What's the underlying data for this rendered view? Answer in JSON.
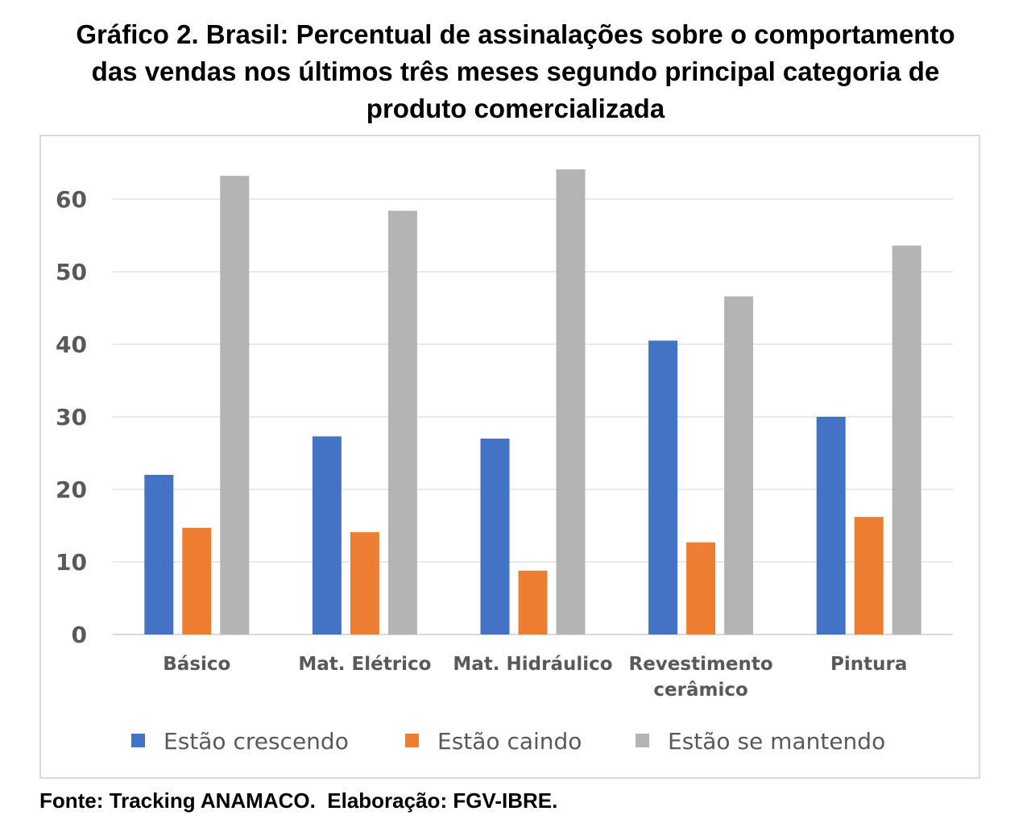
{
  "title_lines": [
    "Gráfico 2. Brasil: Percentual de assinalações sobre o comportamento",
    "das vendas nos últimos três meses segundo principal categoria de",
    "produto comercializada"
  ],
  "source": "Fonte: Tracking ANAMACO.  Elaboração: FGV-IBRE.",
  "chart_data": {
    "type": "bar",
    "categories": [
      [
        "Básico"
      ],
      [
        "Mat. Elétrico"
      ],
      [
        "Mat. Hidráulico"
      ],
      [
        "Revestimento",
        "cerâmico"
      ],
      [
        "Pintura"
      ]
    ],
    "series": [
      {
        "name": "Estão crescendo",
        "color": "#4472c4",
        "values": [
          22.0,
          27.3,
          27.0,
          40.5,
          30.0
        ]
      },
      {
        "name": "Estão caindo",
        "color": "#ed7d31",
        "values": [
          14.7,
          14.1,
          8.8,
          12.7,
          16.2
        ]
      },
      {
        "name": "Estão se mantendo",
        "color": "#b4b4b4",
        "values": [
          63.2,
          58.4,
          64.1,
          46.6,
          53.6
        ]
      }
    ],
    "ylim": [
      0,
      70
    ],
    "yticks": [
      0,
      10,
      20,
      30,
      40,
      50,
      60
    ],
    "grid": true,
    "legend": "bottom",
    "title": "",
    "xlabel": "",
    "ylabel": ""
  }
}
